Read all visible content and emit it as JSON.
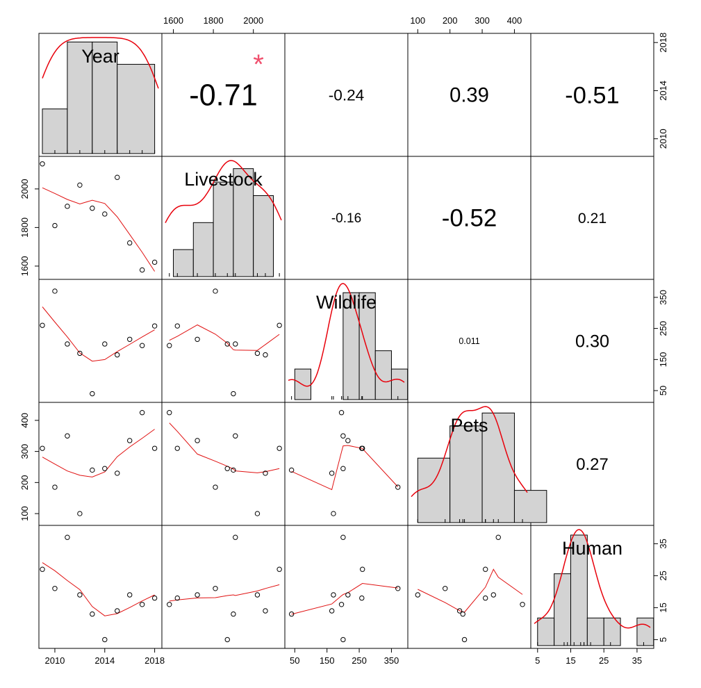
{
  "chart_data": {
    "type": "scatter-matrix",
    "title": "",
    "variables": [
      {
        "name": "Year",
        "range": [
          2009,
          2018.3
        ],
        "ticks": [
          2010,
          2014,
          2018
        ],
        "hist": {
          "breaks": [
            2009,
            2011,
            2013,
            2015,
            2018
          ],
          "counts": [
            2,
            5,
            5,
            4
          ],
          "ymax": 5.2
        }
      },
      {
        "name": "Livestock",
        "range": [
          1560,
          2140
        ],
        "ticks": [
          1600,
          1800,
          2000
        ],
        "hist": {
          "breaks": [
            1600,
            1700,
            1800,
            1900,
            2000,
            2100
          ],
          "counts": [
            1,
            2,
            3.5,
            4,
            3
          ],
          "ymax": 4.3
        }
      },
      {
        "name": "Wildlife",
        "range": [
          30,
          390
        ],
        "ticks": [
          50,
          150,
          250,
          350
        ],
        "tick_labels_x": [
          50,
          150,
          250,
          350
        ],
        "tick_labels_y": [
          50,
          150,
          250,
          350
        ],
        "hist": {
          "breaks": [
            50,
            100,
            150,
            200,
            250,
            300,
            350,
            400
          ],
          "counts": [
            1,
            0,
            0,
            3.5,
            3.5,
            1.6,
            1
          ],
          "ymax": 3.8
        }
      },
      {
        "name": "Pets",
        "range": [
          80,
          440
        ],
        "ticks": [
          100,
          200,
          300,
          400
        ],
        "hist": {
          "breaks": [
            100,
            200,
            300,
            400,
            500
          ],
          "counts": [
            2,
            3,
            3.4,
            1
          ],
          "ymax": 3.6
        }
      },
      {
        "name": "Human",
        "range": [
          4,
          39
        ],
        "ticks": [
          5,
          15,
          25,
          35
        ],
        "tick_labels_x": [
          5,
          15,
          25,
          35
        ],
        "tick_labels_y": [
          5,
          15,
          25,
          35
        ],
        "hist": {
          "breaks": [
            5,
            10,
            15,
            20,
            25,
            30,
            35,
            40
          ],
          "counts": [
            1,
            2.6,
            4,
            1,
            1,
            0,
            1
          ],
          "ymax": 4.2
        }
      }
    ],
    "observations": {
      "Year": [
        2009,
        2010,
        2011,
        2012,
        2013,
        2014,
        2015,
        2016,
        2017,
        2018
      ],
      "Livestock": [
        2130,
        1810,
        1910,
        2020,
        1900,
        1870,
        2060,
        1720,
        1580,
        1620
      ],
      "Wildlife": [
        260,
        370,
        200,
        170,
        40,
        200,
        165,
        215,
        195,
        258
      ],
      "Pets": [
        310,
        185,
        350,
        100,
        240,
        245,
        230,
        335,
        425,
        310
      ],
      "Human": [
        27,
        21,
        37,
        19,
        13,
        5,
        14,
        19,
        16,
        18
      ]
    },
    "correlations": [
      {
        "pair": [
          "Year",
          "Livestock"
        ],
        "value": "-0.71",
        "significance": "*"
      },
      {
        "pair": [
          "Year",
          "Wildlife"
        ],
        "value": "-0.24",
        "significance": ""
      },
      {
        "pair": [
          "Year",
          "Pets"
        ],
        "value": "0.39",
        "significance": ""
      },
      {
        "pair": [
          "Year",
          "Human"
        ],
        "value": "-0.51",
        "significance": ""
      },
      {
        "pair": [
          "Livestock",
          "Wildlife"
        ],
        "value": "-0.16",
        "significance": ""
      },
      {
        "pair": [
          "Livestock",
          "Pets"
        ],
        "value": "-0.52",
        "significance": ""
      },
      {
        "pair": [
          "Livestock",
          "Human"
        ],
        "value": "0.21",
        "significance": ""
      },
      {
        "pair": [
          "Wildlife",
          "Pets"
        ],
        "value": "0.011",
        "significance": ""
      },
      {
        "pair": [
          "Wildlife",
          "Human"
        ],
        "value": "0.30",
        "significance": ""
      },
      {
        "pair": [
          "Pets",
          "Human"
        ],
        "value": "0.27",
        "significance": ""
      }
    ],
    "colors": {
      "smooth": "#e01010",
      "density": "#e8000b",
      "hist_fill": "#d3d3d3",
      "star": "#f0506e"
    }
  }
}
